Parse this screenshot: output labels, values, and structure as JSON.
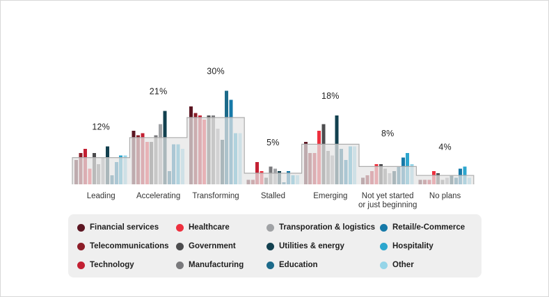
{
  "chart_data": {
    "type": "bar",
    "title": "",
    "xlabel": "",
    "ylabel": "",
    "ylim": [
      0,
      45
    ],
    "grid": false,
    "legend_position": "bottom",
    "categories": [
      "Leading",
      "Accelerating",
      "Transforming",
      "Stalled",
      "Emerging",
      "Not yet started or just beginning",
      "No plans"
    ],
    "category_label_lines": [
      [
        "Leading"
      ],
      [
        "Accelerating"
      ],
      [
        "Transforming"
      ],
      [
        "Stalled"
      ],
      [
        "Emerging"
      ],
      [
        "Not yet started",
        "or just beginning"
      ],
      [
        "No plans"
      ]
    ],
    "group_avg_labels": [
      "12%",
      "21%",
      "30%",
      "5%",
      "18%",
      "8%",
      "4%"
    ],
    "step_values": [
      12,
      21,
      30,
      5,
      18,
      8,
      4
    ],
    "series": [
      {
        "name": "Financial services",
        "color": "#5C1622",
        "values": [
          11,
          24,
          35,
          2,
          19,
          3,
          2
        ]
      },
      {
        "name": "Telecommunications",
        "color": "#8C1D28",
        "values": [
          14,
          22,
          32,
          2,
          14,
          4,
          2
        ]
      },
      {
        "name": "Technology",
        "color": "#C32033",
        "values": [
          16,
          23,
          31,
          10,
          14,
          6,
          2
        ]
      },
      {
        "name": "Healthcare",
        "color": "#EE303E",
        "values": [
          7,
          19,
          29,
          6,
          24,
          9,
          6
        ]
      },
      {
        "name": "Government",
        "color": "#4C4C4E",
        "values": [
          14,
          19,
          31,
          3,
          27,
          9,
          5
        ]
      },
      {
        "name": "Manufacturing",
        "color": "#79797C",
        "values": [
          9,
          22,
          31,
          8,
          15,
          7,
          2
        ]
      },
      {
        "name": "Transporation & logistics",
        "color": "#A0A2A5",
        "values": [
          12,
          27,
          25,
          7,
          13,
          5,
          3
        ]
      },
      {
        "name": "Utilities & energy",
        "color": "#12404F",
        "values": [
          17,
          33,
          20,
          6,
          31,
          6,
          4
        ]
      },
      {
        "name": "Education",
        "color": "#1C6A8A",
        "values": [
          4,
          6,
          42,
          1,
          16,
          8,
          3
        ]
      },
      {
        "name": "Retail/e-Commerce",
        "color": "#1679A8",
        "values": [
          10,
          18,
          38,
          6,
          11,
          12,
          7
        ]
      },
      {
        "name": "Hospitality",
        "color": "#2CA6CE",
        "values": [
          13,
          18,
          23,
          4,
          17,
          14,
          8
        ]
      },
      {
        "name": "Other",
        "color": "#95D5E8",
        "values": [
          13,
          16,
          23,
          4,
          17,
          9,
          3
        ]
      }
    ]
  },
  "legend": {
    "columns": [
      [
        0,
        1,
        2
      ],
      [
        3,
        4,
        5
      ],
      [
        6,
        7,
        8
      ],
      [
        9,
        10,
        11
      ]
    ],
    "panel_color": "#efefef"
  },
  "style": {
    "step_fill": "rgba(229,229,229,0.72)",
    "step_stroke": "#adadad",
    "text_color": "#222222"
  }
}
